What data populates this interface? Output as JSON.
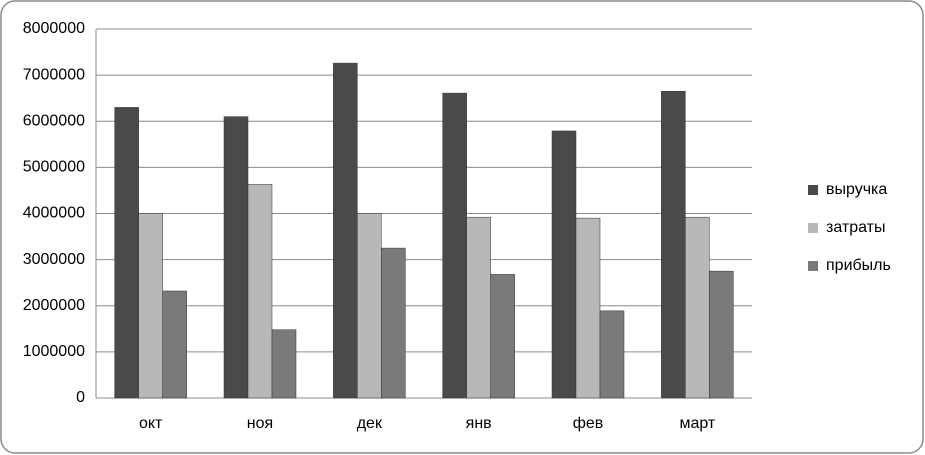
{
  "chart_data": {
    "type": "bar",
    "categories": [
      "окт",
      "ноя",
      "дек",
      "янв",
      "фев",
      "март"
    ],
    "series": [
      {
        "name": "выручка",
        "color": "#4a4a4a",
        "values": [
          6300000,
          6100000,
          7260000,
          6610000,
          5790000,
          6650000
        ]
      },
      {
        "name": "затраты",
        "color": "#b8b8b8",
        "values": [
          4000000,
          4630000,
          4000000,
          3920000,
          3900000,
          3920000
        ]
      },
      {
        "name": "прибыль",
        "color": "#7a7a7a",
        "values": [
          2320000,
          1480000,
          3250000,
          2680000,
          1890000,
          2750000
        ]
      }
    ],
    "ylim": [
      0,
      8000000
    ],
    "yticks": [
      0,
      1000000,
      2000000,
      3000000,
      4000000,
      5000000,
      6000000,
      7000000,
      8000000
    ],
    "grid": true,
    "legend": "right"
  }
}
